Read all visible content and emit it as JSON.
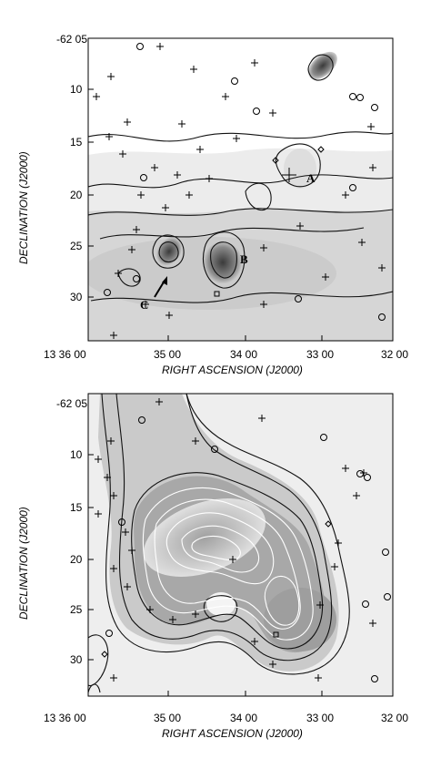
{
  "figure": {
    "panels": [
      {
        "id": "top",
        "y_ticks": [
          "-62 05",
          "10",
          "15",
          "20",
          "25",
          "30"
        ],
        "x_ticks": [
          "13 36 00",
          "35 00",
          "34 00",
          "33 00",
          "32 00"
        ],
        "xlabel": "RIGHT ASCENSION (J2000)",
        "ylabel": "DECLINATION (J2000)",
        "region_labels": [
          "A",
          "B",
          "C"
        ]
      },
      {
        "id": "bottom",
        "y_ticks": [
          "-62 05",
          "10",
          "15",
          "20",
          "25",
          "30"
        ],
        "x_ticks": [
          "13 36 00",
          "35 00",
          "34 00",
          "33 00",
          "32 00"
        ],
        "xlabel": "RIGHT ASCENSION (J2000)",
        "ylabel": "DECLINATION (J2000)"
      }
    ]
  },
  "colors": {
    "frame": "#000000",
    "background": "#ffffff",
    "emission": "#9a9a9a",
    "white_contour": "#ffffff"
  },
  "icons": [
    "plus-marker",
    "circle-marker",
    "diamond-marker",
    "square-marker",
    "arrow-icon"
  ]
}
